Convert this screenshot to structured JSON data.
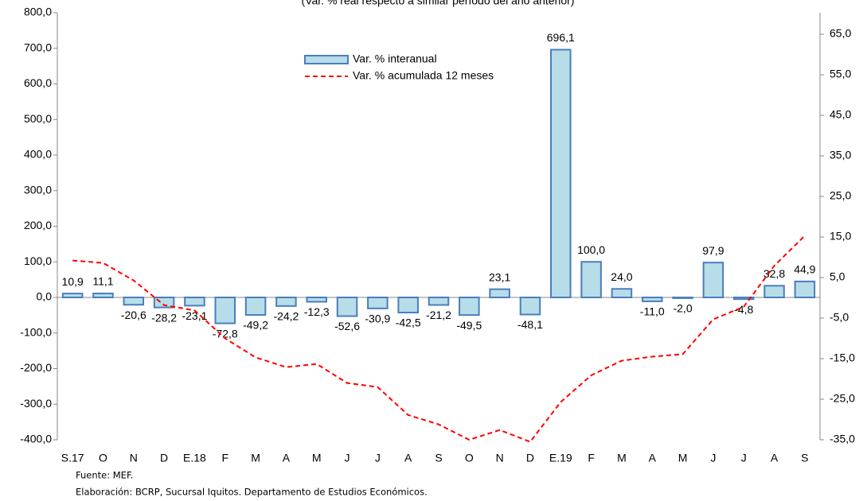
{
  "chart_data": {
    "type": "combo",
    "title": "(Var. % real respecto a similar período del año anterior)",
    "categories": [
      "S.17",
      "O",
      "N",
      "D",
      "E.18",
      "F",
      "M",
      "A",
      "M",
      "J",
      "J",
      "A",
      "S",
      "O",
      "N",
      "D",
      "E.19",
      "F",
      "M",
      "A",
      "M",
      "J",
      "J",
      "A",
      "S"
    ],
    "series": [
      {
        "name": "Var. % interanual",
        "type": "bar",
        "color": "#b7dde8",
        "stroke": "#4a7ebb",
        "values": [
          10.9,
          11.1,
          -20.6,
          -28.2,
          -23.1,
          -72.8,
          -49.2,
          -24.2,
          -12.3,
          -52.6,
          -30.9,
          -42.5,
          -21.2,
          -49.5,
          23.1,
          -48.1,
          696.1,
          100.0,
          24.0,
          -11.0,
          -2.0,
          97.9,
          -4.8,
          32.8,
          44.9
        ],
        "value_labels": [
          "10,9",
          "11,1",
          "-20,6",
          "-28,2",
          "-23,1",
          "-72,8",
          "-49,2",
          "-24,2",
          "-12,3",
          "-52,6",
          "-30,9",
          "-42,5",
          "-21,2",
          "-49,5",
          "23,1",
          "-48,1",
          "696,1",
          "100,0",
          "24,0",
          "-11,0",
          "-2,0",
          "97,9",
          "-4,8",
          "32,8",
          "44,9"
        ]
      },
      {
        "name": "Var. % acumulada 12 meses",
        "type": "line",
        "axis": "y2",
        "color": "#ff0000",
        "values": [
          9.2,
          8.6,
          4.3,
          -1.8,
          -3.1,
          -10.0,
          -14.7,
          -17.1,
          -16.3,
          -21.0,
          -22.0,
          -28.9,
          -31.2,
          -35.0,
          -32.6,
          -35.5,
          -25.7,
          -19.1,
          -15.5,
          -14.5,
          -13.9,
          -5.3,
          -2.2,
          7.9,
          15.3
        ]
      }
    ],
    "ylim": [
      -400,
      800
    ],
    "yticks": [
      {
        "value": -400,
        "label": "-400,0"
      },
      {
        "value": -300,
        "label": "-300,0"
      },
      {
        "value": -200,
        "label": "-200,0"
      },
      {
        "value": -100,
        "label": "-100,0"
      },
      {
        "value": 0,
        "label": "0,0"
      },
      {
        "value": 100,
        "label": "100,0"
      },
      {
        "value": 200,
        "label": "200,0"
      },
      {
        "value": 300,
        "label": "300,0"
      },
      {
        "value": 400,
        "label": "400,0"
      },
      {
        "value": 500,
        "label": "500,0"
      },
      {
        "value": 600,
        "label": "600,0"
      },
      {
        "value": 700,
        "label": "700,0"
      },
      {
        "value": 800,
        "label": "800,0"
      }
    ],
    "y2lim": [
      -35,
      70.3
    ],
    "y2ticks": [
      {
        "value": -35,
        "label": "-35,0"
      },
      {
        "value": -25,
        "label": "-25,0"
      },
      {
        "value": -15,
        "label": "-15,0"
      },
      {
        "value": -5,
        "label": "-5,0"
      },
      {
        "value": 5,
        "label": "5,0"
      },
      {
        "value": 15,
        "label": "15,0"
      },
      {
        "value": 25,
        "label": "25,0"
      },
      {
        "value": 35,
        "label": "35,0"
      },
      {
        "value": 45,
        "label": "45,0"
      },
      {
        "value": 55,
        "label": "55,0"
      },
      {
        "value": 65,
        "label": "65,0"
      }
    ],
    "grid": false,
    "footnotes": [
      "Fuente: MEF.",
      "Elaboración: BCRP, Sucursal Iquitos. Departamento de Estudios Económicos."
    ]
  }
}
